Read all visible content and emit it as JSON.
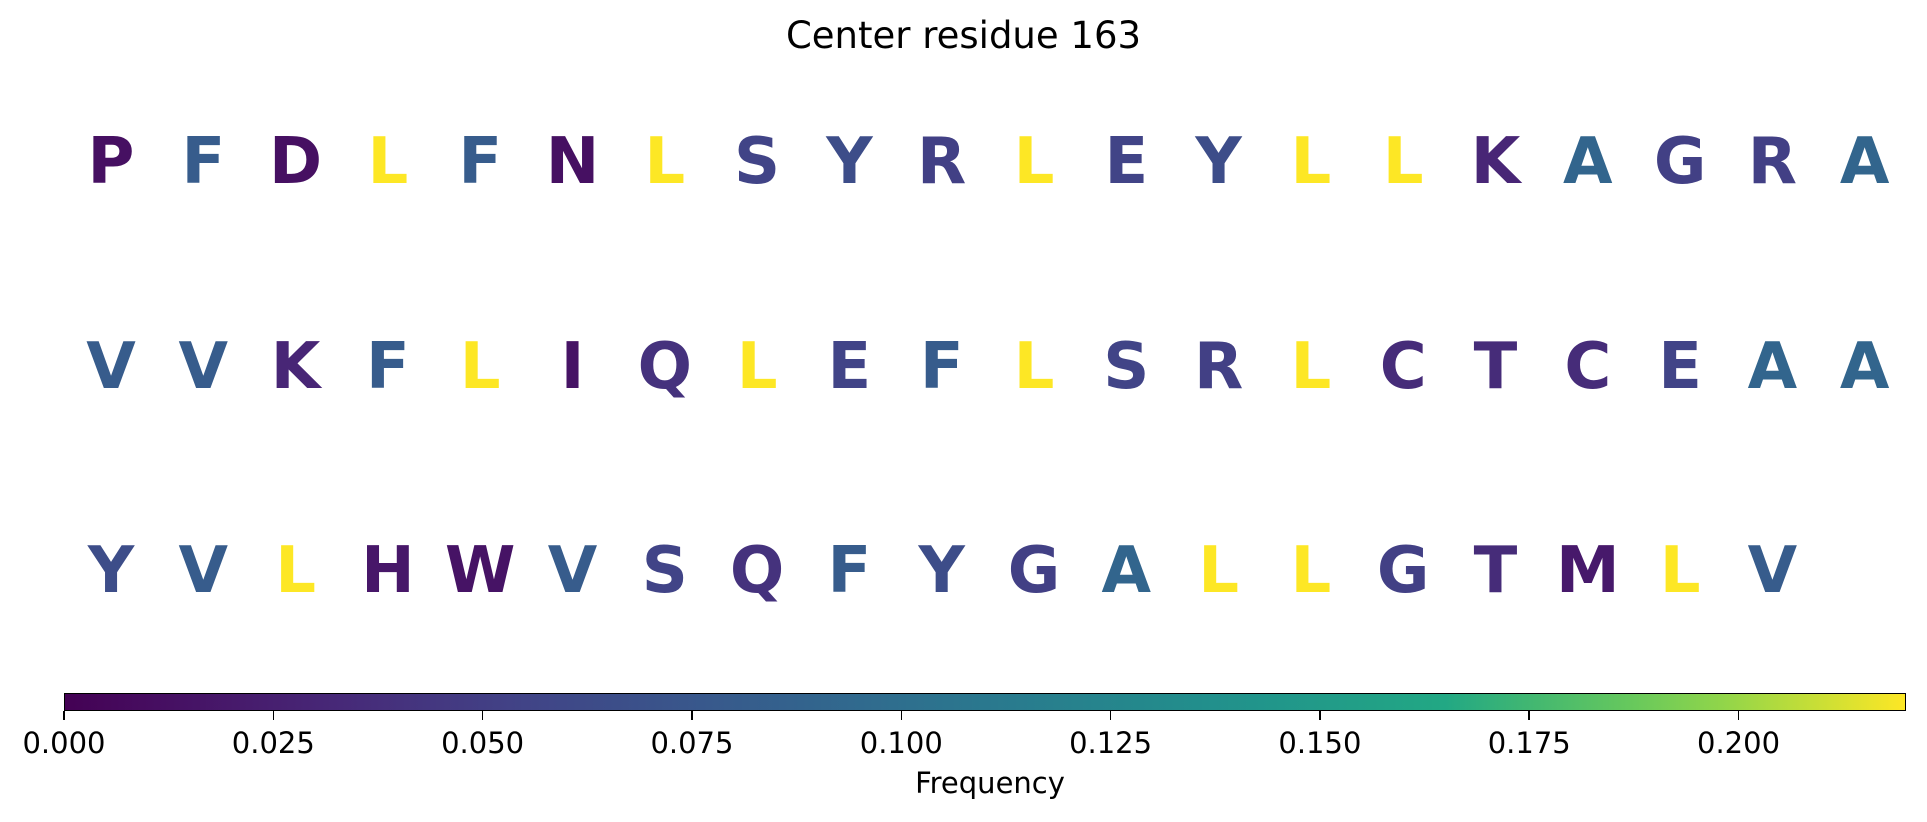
{
  "chart_data": {
    "type": "sequence_frequency_grid",
    "title": "Center residue 163",
    "rows": [
      {
        "residues": [
          {
            "letter": "P",
            "freq": 0.012
          },
          {
            "letter": "F",
            "freq": 0.08
          },
          {
            "letter": "D",
            "freq": 0.012
          },
          {
            "letter": "L",
            "freq": 0.22
          },
          {
            "letter": "F",
            "freq": 0.08
          },
          {
            "letter": "N",
            "freq": 0.012
          },
          {
            "letter": "L",
            "freq": 0.22
          },
          {
            "letter": "S",
            "freq": 0.055
          },
          {
            "letter": "Y",
            "freq": 0.065
          },
          {
            "letter": "R",
            "freq": 0.052
          },
          {
            "letter": "L",
            "freq": 0.22
          },
          {
            "letter": "E",
            "freq": 0.055
          },
          {
            "letter": "Y",
            "freq": 0.065
          },
          {
            "letter": "L",
            "freq": 0.22
          },
          {
            "letter": "L",
            "freq": 0.22
          },
          {
            "letter": "K",
            "freq": 0.03
          },
          {
            "letter": "A",
            "freq": 0.09
          },
          {
            "letter": "G",
            "freq": 0.052
          },
          {
            "letter": "R",
            "freq": 0.052
          },
          {
            "letter": "A",
            "freq": 0.09
          }
        ]
      },
      {
        "residues": [
          {
            "letter": "V",
            "freq": 0.08
          },
          {
            "letter": "V",
            "freq": 0.08
          },
          {
            "letter": "K",
            "freq": 0.03
          },
          {
            "letter": "F",
            "freq": 0.08
          },
          {
            "letter": "L",
            "freq": 0.22
          },
          {
            "letter": "I",
            "freq": 0.015
          },
          {
            "letter": "Q",
            "freq": 0.04
          },
          {
            "letter": "L",
            "freq": 0.22
          },
          {
            "letter": "E",
            "freq": 0.055
          },
          {
            "letter": "F",
            "freq": 0.08
          },
          {
            "letter": "L",
            "freq": 0.22
          },
          {
            "letter": "S",
            "freq": 0.055
          },
          {
            "letter": "R",
            "freq": 0.052
          },
          {
            "letter": "L",
            "freq": 0.22
          },
          {
            "letter": "C",
            "freq": 0.035
          },
          {
            "letter": "T",
            "freq": 0.035
          },
          {
            "letter": "C",
            "freq": 0.035
          },
          {
            "letter": "E",
            "freq": 0.055
          },
          {
            "letter": "A",
            "freq": 0.09
          },
          {
            "letter": "A",
            "freq": 0.09
          }
        ]
      },
      {
        "residues": [
          {
            "letter": "Y",
            "freq": 0.065
          },
          {
            "letter": "V",
            "freq": 0.08
          },
          {
            "letter": "L",
            "freq": 0.22
          },
          {
            "letter": "H",
            "freq": 0.018
          },
          {
            "letter": "W",
            "freq": 0.015
          },
          {
            "letter": "V",
            "freq": 0.08
          },
          {
            "letter": "S",
            "freq": 0.055
          },
          {
            "letter": "Q",
            "freq": 0.04
          },
          {
            "letter": "F",
            "freq": 0.08
          },
          {
            "letter": "Y",
            "freq": 0.065
          },
          {
            "letter": "G",
            "freq": 0.052
          },
          {
            "letter": "A",
            "freq": 0.09
          },
          {
            "letter": "L",
            "freq": 0.22
          },
          {
            "letter": "L",
            "freq": 0.22
          },
          {
            "letter": "G",
            "freq": 0.052
          },
          {
            "letter": "T",
            "freq": 0.035
          },
          {
            "letter": "M",
            "freq": 0.02
          },
          {
            "letter": "L",
            "freq": 0.22
          },
          {
            "letter": "V",
            "freq": 0.08
          }
        ]
      }
    ],
    "colorbar": {
      "label": "Frequency",
      "colormap": "viridis",
      "range": [
        0,
        0.22
      ],
      "ticks": [
        0.0,
        0.025,
        0.05,
        0.075,
        0.1,
        0.125,
        0.15,
        0.175,
        0.2
      ],
      "tick_labels": [
        "0.000",
        "0.025",
        "0.050",
        "0.075",
        "0.100",
        "0.125",
        "0.150",
        "0.175",
        "0.200"
      ],
      "orientation": "horizontal",
      "placement": "bottom"
    }
  }
}
